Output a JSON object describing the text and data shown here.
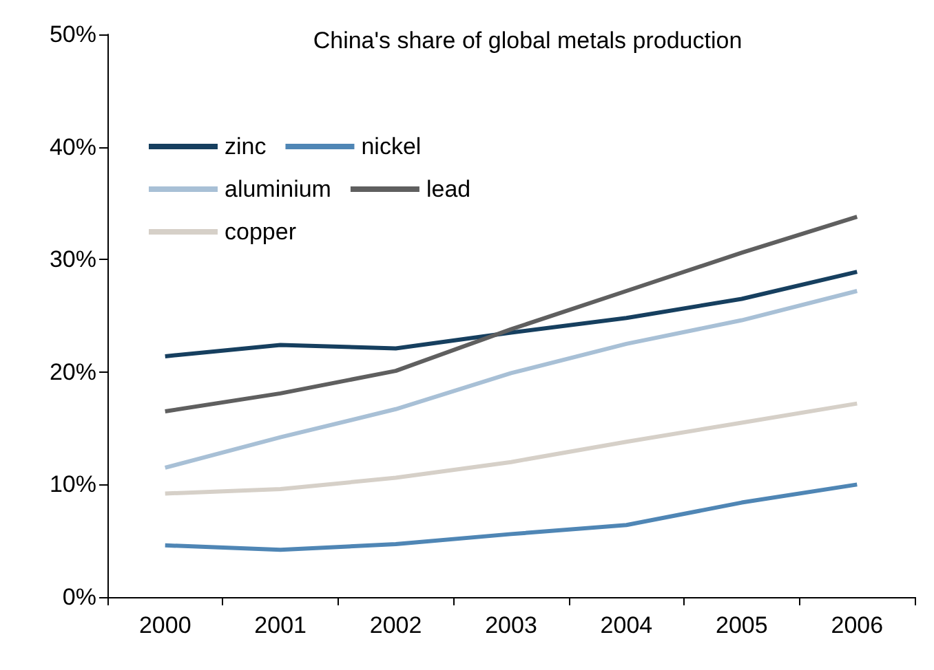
{
  "chart_data": {
    "type": "line",
    "title": "China's share of global metals production",
    "categories": [
      "2000",
      "2001",
      "2002",
      "2003",
      "2004",
      "2005",
      "2006"
    ],
    "series": [
      {
        "name": "zinc",
        "color": "#163f5f",
        "values": [
          21.4,
          22.4,
          22.1,
          23.5,
          24.8,
          26.5,
          28.9
        ]
      },
      {
        "name": "nickel",
        "color": "#4f86b5",
        "values": [
          4.6,
          4.2,
          4.7,
          5.6,
          6.4,
          8.4,
          10.0
        ]
      },
      {
        "name": "aluminium",
        "color": "#a8c0d6",
        "values": [
          11.5,
          14.2,
          16.7,
          19.9,
          22.5,
          24.6,
          27.2
        ]
      },
      {
        "name": "lead",
        "color": "#5f5f5f",
        "values": [
          16.5,
          18.1,
          20.1,
          23.8,
          27.2,
          30.6,
          33.8
        ]
      },
      {
        "name": "copper",
        "color": "#d6d0c8",
        "values": [
          9.2,
          9.6,
          10.6,
          12.0,
          13.8,
          15.5,
          17.2
        ]
      }
    ],
    "ylim": [
      0,
      50
    ],
    "yticks": [
      {
        "value": 0,
        "label": "0%"
      },
      {
        "value": 10,
        "label": "10%"
      },
      {
        "value": 20,
        "label": "20%"
      },
      {
        "value": 30,
        "label": "30%"
      },
      {
        "value": 40,
        "label": "40%"
      },
      {
        "value": 50,
        "label": "50%"
      }
    ],
    "grid": false,
    "legend": "top left",
    "marker": "none",
    "line_style": "solid"
  }
}
